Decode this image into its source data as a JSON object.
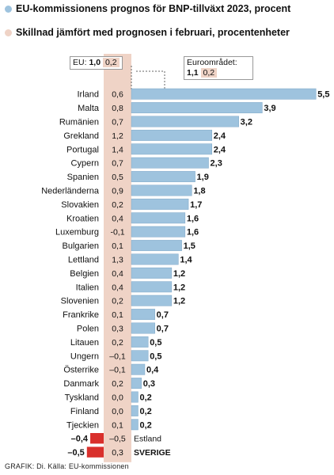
{
  "legend": {
    "forecast_label": "EU-kommissionens prognos för BNP-tillväxt 2023, procent",
    "change_label": "Skillnad jämfört med prognosen i februari, procentenheter"
  },
  "callouts": {
    "eu": {
      "label": "EU:",
      "value": "1,0",
      "change": "0,2"
    },
    "euro": {
      "label": "Euroområdet:",
      "value": "1,1",
      "change": "0,2"
    }
  },
  "footer": "GRAFIK: Di. Källa: EU-kommissionen",
  "chart_data": {
    "type": "bar",
    "orientation": "horizontal",
    "categories": [
      "Irland",
      "Malta",
      "Rumänien",
      "Grekland",
      "Portugal",
      "Cypern",
      "Spanien",
      "Nederländerna",
      "Slovakien",
      "Kroatien",
      "Luxemburg",
      "Bulgarien",
      "Lettland",
      "Belgien",
      "Italien",
      "Slovenien",
      "Frankrike",
      "Polen",
      "Litauen",
      "Ungern",
      "Österrike",
      "Danmark",
      "Tyskland",
      "Finland",
      "Tjeckien",
      "Estland",
      "SVERIGE"
    ],
    "series": [
      {
        "name": "EU-kommissionens prognos för BNP-tillväxt 2023, procent",
        "values": [
          5.5,
          3.9,
          3.2,
          2.4,
          2.4,
          2.3,
          1.9,
          1.8,
          1.7,
          1.6,
          1.6,
          1.5,
          1.4,
          1.2,
          1.2,
          1.2,
          0.7,
          0.7,
          0.5,
          0.5,
          0.4,
          0.3,
          0.2,
          0.2,
          0.2,
          -0.4,
          -0.5
        ],
        "labels": [
          "5,5",
          "3,9",
          "3,2",
          "2,4",
          "2,4",
          "2,3",
          "1,9",
          "1,8",
          "1,7",
          "1,6",
          "1,6",
          "1,5",
          "1,4",
          "1,2",
          "1,2",
          "1,2",
          "0,7",
          "0,7",
          "0,5",
          "0,5",
          "0,4",
          "0,3",
          "0,2",
          "0,2",
          "0,2",
          "–0,4",
          "–0,5"
        ]
      },
      {
        "name": "Skillnad jämfört med prognosen i februari, procentenheter",
        "values": [
          0.6,
          0.8,
          0.7,
          1.2,
          1.4,
          0.7,
          0.5,
          0.9,
          0.2,
          0.4,
          -0.1,
          0.1,
          1.3,
          0.4,
          0.4,
          0.2,
          0.1,
          0.3,
          0.2,
          -0.1,
          -0.1,
          0.2,
          0.0,
          0.0,
          0.1,
          -0.5,
          0.3
        ],
        "labels": [
          "0,6",
          "0,8",
          "0,7",
          "1,2",
          "1,4",
          "0,7",
          "0,5",
          "0,9",
          "0,2",
          "0,4",
          "-0,1",
          "0,1",
          "1,3",
          "0,4",
          "0,4",
          "0,2",
          "0,1",
          "0,3",
          "0,2",
          "–0,1",
          "–0,1",
          "0,2",
          "0,0",
          "0,0",
          "0,1",
          "–0,5",
          "0,3"
        ]
      }
    ],
    "highlight": [
      "Estland",
      "SVERIGE"
    ],
    "colors": {
      "bar": "#9ec3de",
      "bar_stroke": "#7fa8c8",
      "negative_bar": "#d9302c",
      "change_column": "#efd3c6",
      "text": "#111111"
    }
  }
}
